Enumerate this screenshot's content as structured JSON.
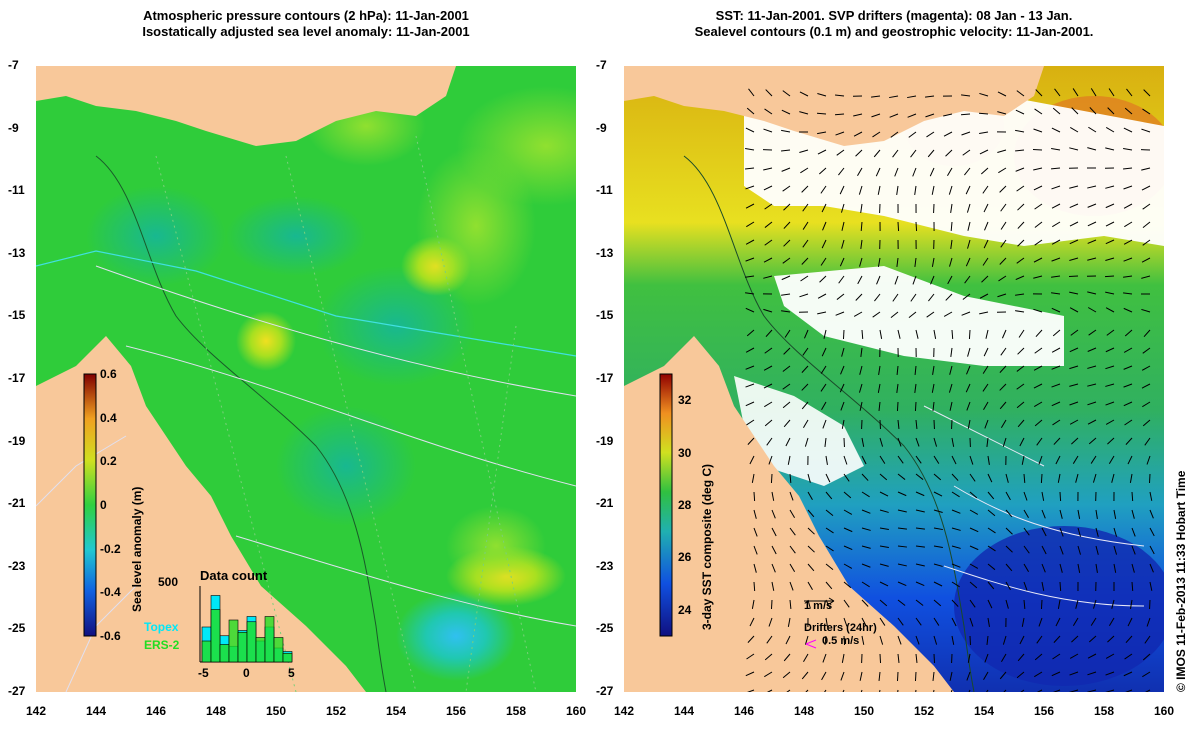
{
  "left_panel": {
    "title_line1": "Atmospheric pressure contours (2 hPa): 11-Jan-2001",
    "title_line2": "Isostatically adjusted sea level anomaly: 11-Jan-2001",
    "lat_ticks": [
      "-7",
      "-9",
      "-11",
      "-13",
      "-15",
      "-17",
      "-19",
      "-21",
      "-23",
      "-25",
      "-27"
    ],
    "lon_ticks": [
      "142",
      "144",
      "146",
      "148",
      "150",
      "152",
      "154",
      "156",
      "158",
      "160"
    ],
    "colorbar": {
      "label": "Sea level anomaly (m)",
      "ticks": [
        "0.6",
        "0.4",
        "0.2",
        "0",
        "-0.2",
        "-0.4",
        "-0.6"
      ],
      "range": [
        -0.6,
        0.6
      ]
    },
    "histogram": {
      "title": "Data count",
      "ytick": "500",
      "xticks": [
        "-5",
        "0",
        "5"
      ],
      "topex_bins": [
        200,
        380,
        150,
        90,
        180,
        260,
        120,
        200,
        80,
        60
      ],
      "ers_bins": [
        120,
        300,
        100,
        240,
        170,
        230,
        140,
        260,
        140,
        50
      ]
    },
    "legend": {
      "topex": "Topex",
      "ers": "ERS-2"
    },
    "colors": {
      "land": "#f8c89a",
      "sea": "#2fcc3a",
      "topex": "#00e8f8",
      "ers": "#22dd22"
    }
  },
  "right_panel": {
    "title_line1": "SST: 11-Jan-2001. SVP drifters (magenta): 08 Jan - 13 Jan.",
    "title_line2": "Sealevel contours (0.1 m) and geostrophic velocity: 11-Jan-2001.",
    "lat_ticks": [
      "-7",
      "-9",
      "-11",
      "-13",
      "-15",
      "-17",
      "-19",
      "-21",
      "-23",
      "-25",
      "-27"
    ],
    "lon_ticks": [
      "142",
      "144",
      "146",
      "148",
      "150",
      "152",
      "154",
      "156",
      "158",
      "160"
    ],
    "colorbar": {
      "label": "3-day SST composite (deg C)",
      "ticks": [
        "32",
        "30",
        "28",
        "26",
        "24"
      ],
      "range": [
        23,
        33
      ]
    },
    "vector_legend": "1 m/s",
    "drifter_legend_title": "Drifters (24hr)",
    "drifter_legend_speed": "0.5 m/s",
    "colors": {
      "land": "#f8c89a",
      "cloud": "#ffffff",
      "drifter": "#ff00ff"
    }
  },
  "credit": "© IMOS 11-Feb-2013 11:33 Hobart Time"
}
